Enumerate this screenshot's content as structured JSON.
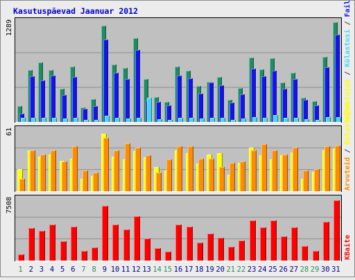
{
  "chart_data": {
    "type": "bar",
    "title": "Kasutuspäevad Jaanuar 2012",
    "categories": [
      "1",
      "2",
      "3",
      "4",
      "5",
      "6",
      "7",
      "8",
      "9",
      "10",
      "11",
      "12",
      "13",
      "14",
      "15",
      "16",
      "17",
      "18",
      "19",
      "20",
      "21",
      "22",
      "23",
      "24",
      "25",
      "26",
      "27",
      "28",
      "29",
      "30",
      "31"
    ],
    "weekend_days": [
      "1",
      "7",
      "8",
      "14",
      "15",
      "21",
      "22",
      "28",
      "29"
    ],
    "ymax_labels": {
      "top": "1289",
      "middle": "61",
      "bottom": "7508"
    },
    "right_labels": {
      "top": [
        {
          "text": "Külastajad",
          "color": "#ffff00"
        },
        {
          "text": " / ",
          "color": "#444444"
        },
        {
          "text": "Külastusi",
          "color": "#44d6f2"
        },
        {
          "text": " / ",
          "color": "#444444"
        },
        {
          "text": "Faile",
          "color": "#1414f0"
        },
        {
          "text": " / ",
          "color": "#444444"
        },
        {
          "text": "Pöördumisi",
          "color": "#1e8c64"
        }
      ],
      "middle": [
        {
          "text": "Arvuteid",
          "color": "#ff8c00"
        },
        {
          "text": " / ",
          "color": "#444444"
        },
        {
          "text": "Külastajad",
          "color": "#ffff00"
        }
      ],
      "bottom": [
        {
          "text": "KBaite",
          "color": "#ff0000"
        }
      ]
    },
    "panels": {
      "top": {
        "ymax": 1289,
        "series": [
          {
            "name": "Pöördumisi",
            "color": "#1e8c64",
            "values": [
              200,
              665,
              760,
              665,
              425,
              710,
              185,
              290,
              1230,
              730,
              690,
              1065,
              550,
              320,
              260,
              710,
              650,
              460,
              510,
              570,
              285,
              430,
              825,
              670,
              815,
              505,
              625,
              310,
              265,
              830,
              1270
            ]
          },
          {
            "name": "Faile",
            "color": "#1414f0",
            "values": [
              110,
              580,
              530,
              595,
              345,
              575,
              165,
              205,
              1050,
              630,
              545,
              920,
              270,
              255,
              215,
              595,
              560,
              360,
              505,
              470,
              250,
              355,
              680,
              580,
              650,
              425,
              550,
              280,
              215,
              700,
              1110
            ]
          },
          {
            "name": "Külastusi",
            "color": "#44d6f2",
            "values": [
              50,
              50,
              50,
              50,
              40,
              50,
              25,
              30,
              80,
              50,
              45,
              50,
              310,
              35,
              30,
              55,
              55,
              40,
              50,
              50,
              30,
              40,
              65,
              55,
              90,
              50,
              55,
              35,
              25,
              65,
              60
            ]
          }
        ]
      },
      "middle": {
        "ymax": 61,
        "series": [
          {
            "name": "Külastajad",
            "color": "#ffff00",
            "values": [
              22,
              40,
              34,
              36,
              30,
              32,
              12,
              15,
              56,
              34,
              31,
              39,
              33,
              24,
              20,
              40,
              37,
              27,
              36,
              37,
              16,
              28,
              43,
              35,
              31,
              35,
              38,
              12,
              19,
              40,
              42
            ]
          },
          {
            "name": "Arvuteid",
            "color": "#ff8c00",
            "values": [
              12,
              40,
              36,
              40,
              29,
              44,
              20,
              18,
              52,
              40,
              47,
              43,
              35,
              18,
              31,
              44,
              44,
              32,
              32,
              24,
              28,
              29,
              40,
              46,
              40,
              36,
              43,
              20,
              22,
              44,
              45
            ]
          }
        ]
      },
      "bottom": {
        "ymax": 7508,
        "series": [
          {
            "name": "KBaite",
            "color": "#ff0000",
            "values": [
              770,
              3960,
              3550,
              4310,
              2370,
              4120,
              1190,
              1580,
              6560,
              4320,
              3720,
              5350,
              2650,
              1480,
              1100,
              4300,
              4100,
              2160,
              3230,
              2740,
              1700,
              2430,
              4830,
              4020,
              4840,
              2950,
              4000,
              1720,
              1170,
              4690,
              7270
            ]
          }
        ]
      }
    }
  }
}
